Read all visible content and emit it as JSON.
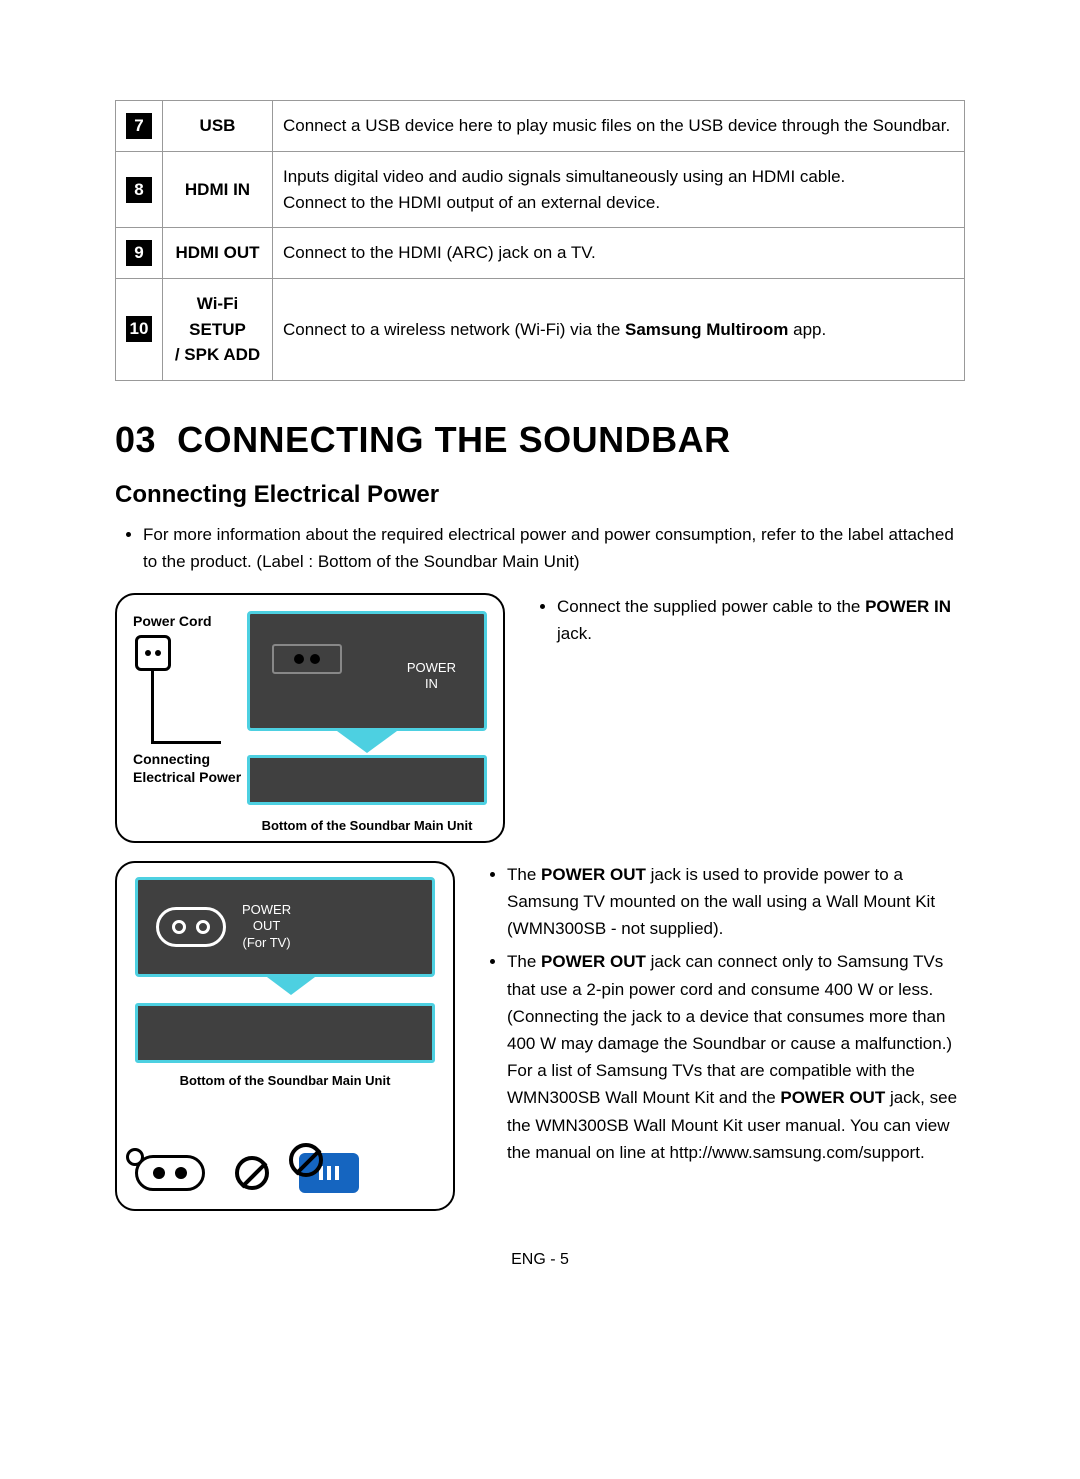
{
  "ports_table": {
    "rows": [
      {
        "num": "7",
        "label": "USB",
        "desc": "Connect a USB device here to play music files on the USB device through the Soundbar."
      },
      {
        "num": "8",
        "label": "HDMI IN",
        "desc_l1": "Inputs digital video and audio signals simultaneously using an HDMI cable.",
        "desc_l2": "Connect to the HDMI output of an external device."
      },
      {
        "num": "9",
        "label": "HDMI OUT",
        "desc": "Connect to the HDMI (ARC) jack on a TV."
      },
      {
        "num": "10",
        "label_l1": "Wi-Fi SETUP",
        "label_l2": "/ SPK ADD",
        "desc_pre": "Connect to a wireless network (Wi-Fi) via the ",
        "desc_bold": "Samsung Multiroom",
        "desc_post": " app."
      }
    ]
  },
  "section_number": "03",
  "section_title": "CONNECTING THE SOUNDBAR",
  "subsection_title": "Connecting Electrical Power",
  "intro_bullet": "For more information about the required electrical power and power consumption, refer to the label attached to the product. (Label : Bottom of the Soundbar Main Unit)",
  "diagram1": {
    "power_cord_label": "Power Cord",
    "connecting_label_l1": "Connecting",
    "connecting_label_l2": "Electrical Power",
    "zoom_label_l1": "POWER",
    "zoom_label_l2": "IN",
    "caption": "Bottom of the Soundbar Main Unit"
  },
  "diagram1_bullet_pre": "Connect the supplied power cable to the ",
  "diagram1_bullet_bold": "POWER IN",
  "diagram1_bullet_post": " jack.",
  "diagram2": {
    "zoom_label_l1": "POWER",
    "zoom_label_l2": "OUT",
    "zoom_label_l3": "(For TV)",
    "caption": "Bottom of the Soundbar Main Unit"
  },
  "d2_bullets": {
    "b1_pre": "The ",
    "b1_bold": "POWER OUT",
    "b1_post": " jack is used to provide power to a Samsung TV mounted on the wall using a Wall Mount Kit (WMN300SB - not supplied).",
    "b2_pre": "The ",
    "b2_bold": "POWER OUT",
    "b2_mid": " jack can connect only to Samsung TVs that use a 2-pin power cord and consume 400 W or less. (Connecting the jack to a device that consumes more than 400 W may damage the Soundbar or cause a malfunction.)",
    "b2_line2_pre": "For a list of Samsung TVs that are compatible with the WMN300SB Wall Mount Kit and the ",
    "b2_line2_bold": "POWER OUT",
    "b2_line2_post": " jack, see the WMN300SB Wall Mount Kit user manual. You can view the manual on line at http://www.samsung.com/support."
  },
  "page_number": "ENG - 5",
  "colors": {
    "cyan_border": "#4dd0e1",
    "dark_panel": "#404040",
    "blue_socket": "#1565c0"
  }
}
